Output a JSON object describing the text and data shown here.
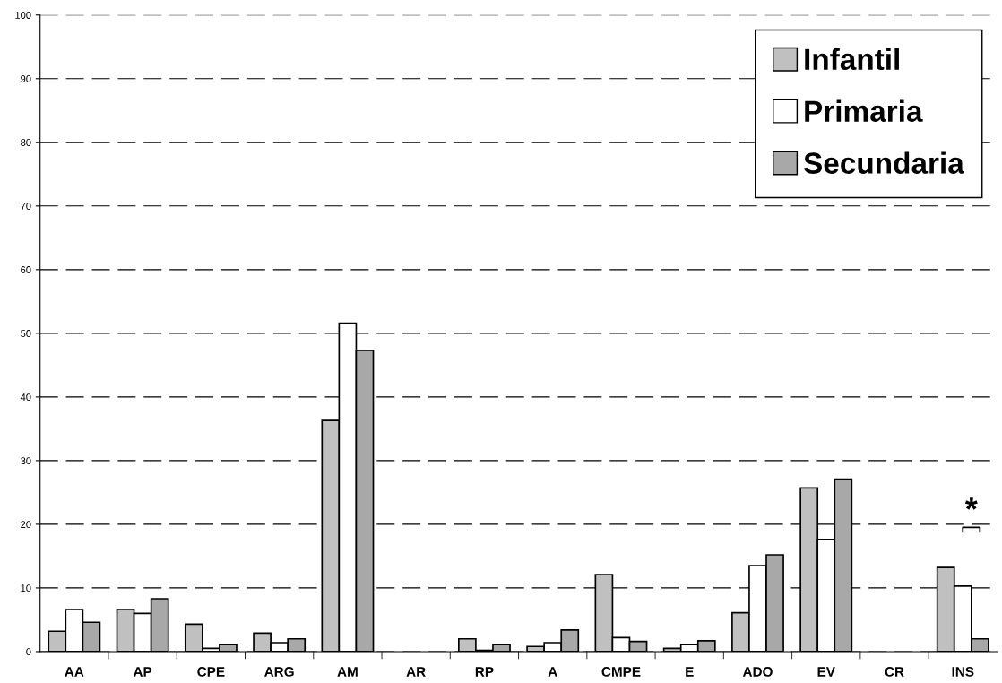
{
  "chart_data": {
    "type": "bar",
    "categories": [
      "AA",
      "AP",
      "CPE",
      "ARG",
      "AM",
      "AR",
      "RP",
      "A",
      "CMPE",
      "E",
      "ADO",
      "EV",
      "CR",
      "INS"
    ],
    "series": [
      {
        "name": "Infantil",
        "color": "#c0c0c0",
        "values": [
          3.2,
          6.6,
          4.3,
          2.9,
          36.3,
          null,
          2.0,
          0.8,
          12.1,
          0.5,
          6.1,
          25.7,
          null,
          13.2
        ]
      },
      {
        "name": "Primaria",
        "color": "#ffffff",
        "values": [
          6.6,
          6.0,
          0.5,
          1.4,
          51.6,
          null,
          0.2,
          1.4,
          2.2,
          1.1,
          13.5,
          17.6,
          null,
          10.3
        ]
      },
      {
        "name": "Secundaria",
        "color": "#a8a8a8",
        "values": [
          4.6,
          8.3,
          1.1,
          2.0,
          47.3,
          null,
          1.1,
          3.4,
          1.6,
          1.7,
          15.2,
          27.1,
          null,
          2.0
        ]
      }
    ],
    "ylim": [
      0,
      100
    ],
    "yticks": [
      0,
      10,
      20,
      30,
      40,
      50,
      60,
      70,
      80,
      90,
      100
    ],
    "grid": "y",
    "legend": "top right",
    "annotations": [
      "*"
    ]
  }
}
